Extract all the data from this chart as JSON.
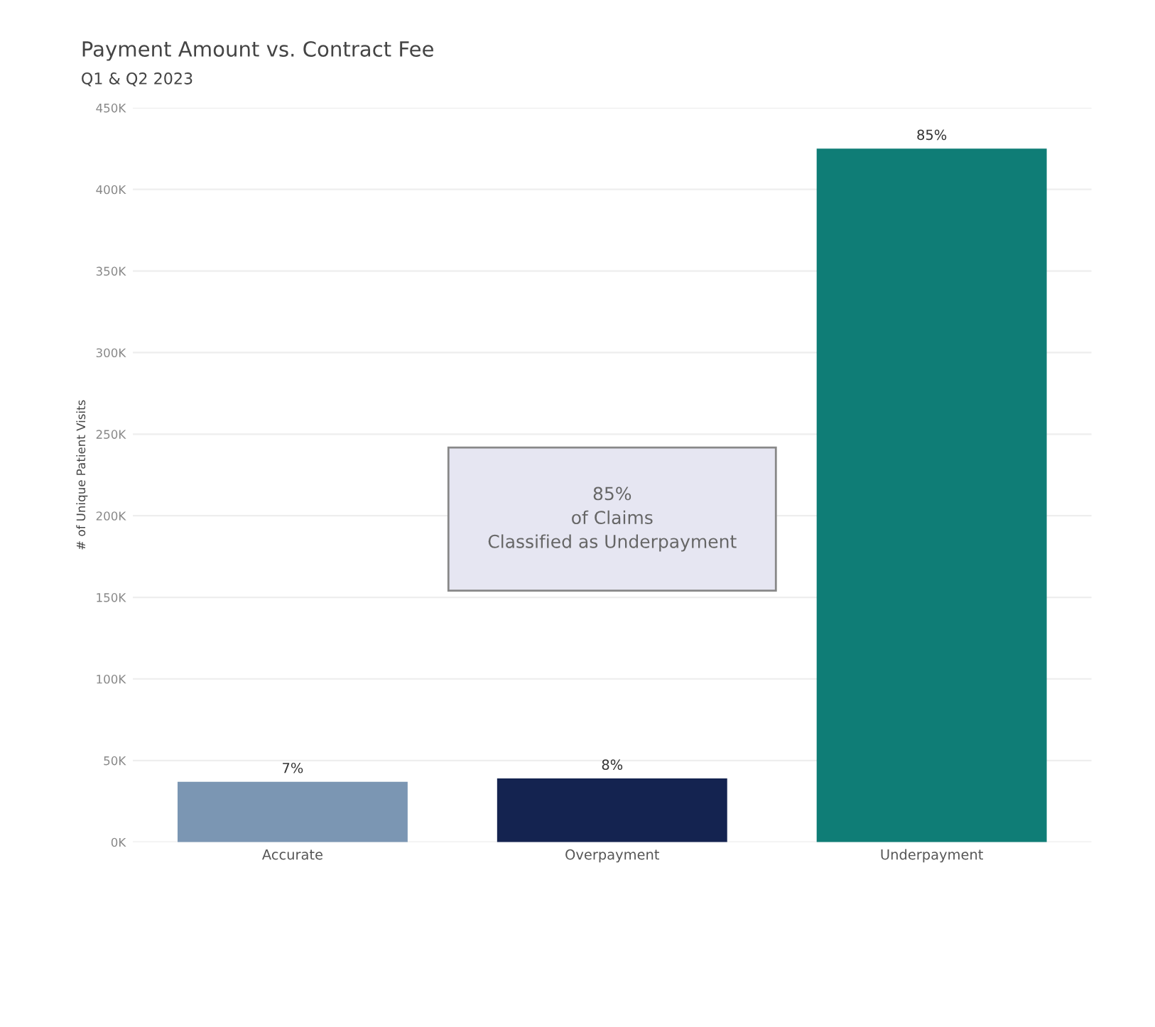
{
  "chart_data": {
    "type": "bar",
    "title": "Payment Amount vs. Contract Fee",
    "subtitle": "Q1 & Q2 2023",
    "ylabel": "# of Unique Patient Visits",
    "categories": [
      "Accurate",
      "Overpayment",
      "Underpayment"
    ],
    "values": [
      37000,
      39000,
      425000
    ],
    "colors": [
      "#7b96b3",
      "#142350",
      "#0f7d76"
    ],
    "ylim": [
      0,
      450000
    ],
    "yticks": [
      {
        "value": 0,
        "label": "0K"
      },
      {
        "value": 50000,
        "label": "50K"
      },
      {
        "value": 100000,
        "label": "100K"
      },
      {
        "value": 150000,
        "label": "150K"
      },
      {
        "value": 200000,
        "label": "200K"
      },
      {
        "value": 250000,
        "label": "250K"
      },
      {
        "value": 300000,
        "label": "300K"
      },
      {
        "value": 350000,
        "label": "350K"
      },
      {
        "value": 400000,
        "label": "400K"
      },
      {
        "value": 450000,
        "label": "450K"
      }
    ],
    "grid": "y",
    "annotations": [
      {
        "text": "7%",
        "x": "Accurate",
        "y": 37000
      },
      {
        "text": "8%",
        "x": "Overpayment",
        "y": 39000
      },
      {
        "text": "85%",
        "x": "Underpayment",
        "y": 425000
      },
      "85%\nof Claims\nClassified as Underpayment"
    ]
  }
}
